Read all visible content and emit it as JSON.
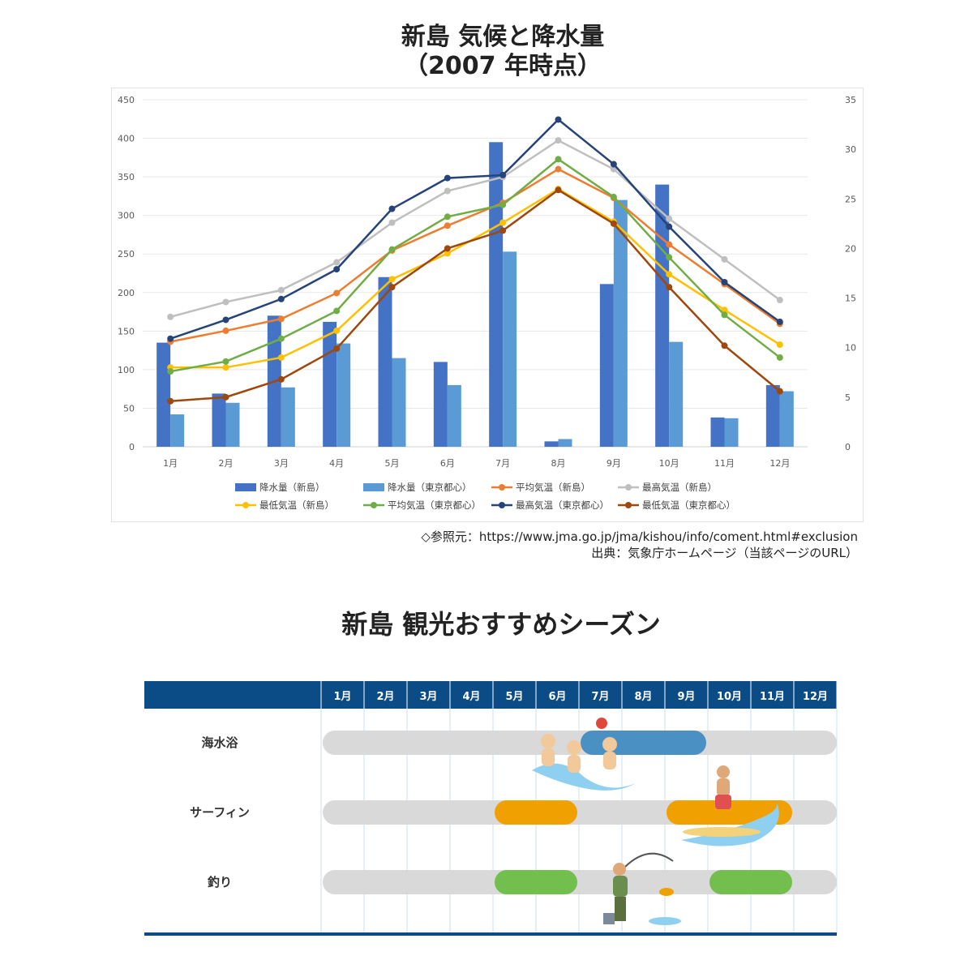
{
  "chart_title_line1": "新島 気候と降水量",
  "chart_title_line2": "（2007 年時点）",
  "chart_data": {
    "type": "bar+line",
    "categories": [
      "1月",
      "2月",
      "3月",
      "4月",
      "5月",
      "6月",
      "7月",
      "8月",
      "9月",
      "10月",
      "11月",
      "12月"
    ],
    "y_left": {
      "range": [
        0,
        450
      ],
      "ticks": [
        0,
        50,
        100,
        150,
        200,
        250,
        300,
        350,
        400,
        450
      ]
    },
    "y_right": {
      "range": [
        0,
        35
      ],
      "ticks": [
        0,
        5,
        10,
        15,
        20,
        25,
        30,
        35
      ]
    },
    "bar_series": [
      {
        "name": "降水量（新島）",
        "color": "#4472c4",
        "axis": "left",
        "values": [
          135,
          69,
          170,
          162,
          220,
          110,
          395,
          7,
          211,
          340,
          38,
          80
        ]
      },
      {
        "name": "降水量（東京都心）",
        "color": "#5b9bd5",
        "axis": "left",
        "values": [
          42,
          57,
          77,
          134,
          115,
          80,
          253,
          10,
          320,
          136,
          37,
          72
        ]
      }
    ],
    "line_series": [
      {
        "name": "平均気温（新島）",
        "color": "#ed7d31",
        "axis": "right",
        "values": [
          10.6,
          11.7,
          12.9,
          15.5,
          19.8,
          22.3,
          24.6,
          28.0,
          25.1,
          20.4,
          16.4,
          12.4
        ]
      },
      {
        "name": "最高気温（新島）",
        "color": "#bfbfbf",
        "axis": "right",
        "values": [
          13.1,
          14.6,
          15.8,
          18.6,
          22.6,
          25.8,
          27.2,
          30.9,
          28.0,
          23.0,
          18.9,
          14.8
        ]
      },
      {
        "name": "最低気温（新島）",
        "color": "#ffc000",
        "axis": "right",
        "values": [
          8.0,
          8.0,
          9.0,
          11.7,
          16.9,
          19.5,
          22.6,
          26.0,
          22.7,
          17.4,
          13.8,
          10.3
        ]
      },
      {
        "name": "平均気温（東京都心）",
        "color": "#70ad47",
        "axis": "right",
        "values": [
          7.6,
          8.6,
          10.9,
          13.7,
          19.9,
          23.2,
          24.4,
          29.0,
          25.2,
          19.1,
          13.3,
          9.0
        ]
      },
      {
        "name": "最高気温（東京都心）",
        "color": "#264478",
        "axis": "right",
        "values": [
          10.9,
          12.8,
          14.9,
          17.9,
          24.0,
          27.1,
          27.4,
          33.0,
          28.5,
          22.2,
          16.6,
          12.6
        ]
      },
      {
        "name": "最低気温（東京都心）",
        "color": "#9e480e",
        "axis": "right",
        "values": [
          4.6,
          5.0,
          6.8,
          9.9,
          16.1,
          20.0,
          21.8,
          25.9,
          22.5,
          16.1,
          10.2,
          5.6
        ]
      }
    ]
  },
  "source_line1": "◇参照元：https://www.jma.go.jp/jma/kishou/info/coment.html#exclusion",
  "source_line2": "出典：気象庁ホームページ（当該ページのURL）",
  "season_title": "新島 観光おすすめシーズン",
  "season_chart": {
    "header_color": "#0b4c86",
    "months": [
      "1月",
      "2月",
      "3月",
      "4月",
      "5月",
      "6月",
      "7月",
      "8月",
      "9月",
      "10月",
      "11月",
      "12月"
    ],
    "rows": [
      {
        "label": "海水浴",
        "color": "#4a90c2",
        "start_month": 7,
        "end_month": 9
      },
      {
        "label": "サーフィン",
        "color": "#f0a000",
        "periods": [
          [
            5,
            6
          ],
          [
            9,
            11
          ]
        ]
      },
      {
        "label": "釣り",
        "color": "#72bf4e",
        "periods": [
          [
            5,
            6
          ],
          [
            10,
            11
          ]
        ]
      }
    ]
  }
}
